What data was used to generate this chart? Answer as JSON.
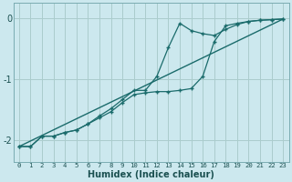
{
  "xlabel": "Humidex (Indice chaleur)",
  "background_color": "#cce8ee",
  "grid_color": "#aacccc",
  "line_color": "#1a6b6b",
  "xlim": [
    -0.5,
    23.5
  ],
  "ylim": [
    -2.35,
    0.25
  ],
  "yticks": [
    0,
    -1,
    -2
  ],
  "xticks": [
    0,
    1,
    2,
    3,
    4,
    5,
    6,
    7,
    8,
    9,
    10,
    11,
    12,
    13,
    14,
    15,
    16,
    17,
    18,
    19,
    20,
    21,
    22,
    23
  ],
  "line1_x": [
    0,
    1,
    2,
    3,
    4,
    5,
    6,
    7,
    8,
    9,
    10,
    11,
    12,
    13,
    14,
    15,
    16,
    17,
    18,
    19,
    20,
    21,
    22,
    23
  ],
  "line1_y": [
    -2.1,
    -2.1,
    -1.93,
    -1.93,
    -1.87,
    -1.83,
    -1.73,
    -1.6,
    -1.48,
    -1.33,
    -1.18,
    -1.18,
    -0.95,
    -0.48,
    -0.08,
    -0.2,
    -0.25,
    -0.28,
    -0.18,
    -0.1,
    -0.05,
    -0.03,
    -0.02,
    -0.01
  ],
  "line2_x": [
    0,
    1,
    2,
    3,
    4,
    5,
    6,
    7,
    8,
    9,
    10,
    11,
    12,
    13,
    14,
    15,
    16,
    17,
    18,
    19,
    20,
    21,
    22,
    23
  ],
  "line2_y": [
    -2.1,
    -2.1,
    -1.93,
    -1.93,
    -1.87,
    -1.83,
    -1.73,
    -1.63,
    -1.53,
    -1.38,
    -1.25,
    -1.22,
    -1.2,
    -1.2,
    -1.18,
    -1.15,
    -0.95,
    -0.38,
    -0.12,
    -0.08,
    -0.05,
    -0.03,
    -0.02,
    -0.01
  ],
  "line3_x": [
    0,
    23
  ],
  "line3_y": [
    -2.1,
    -0.01
  ]
}
